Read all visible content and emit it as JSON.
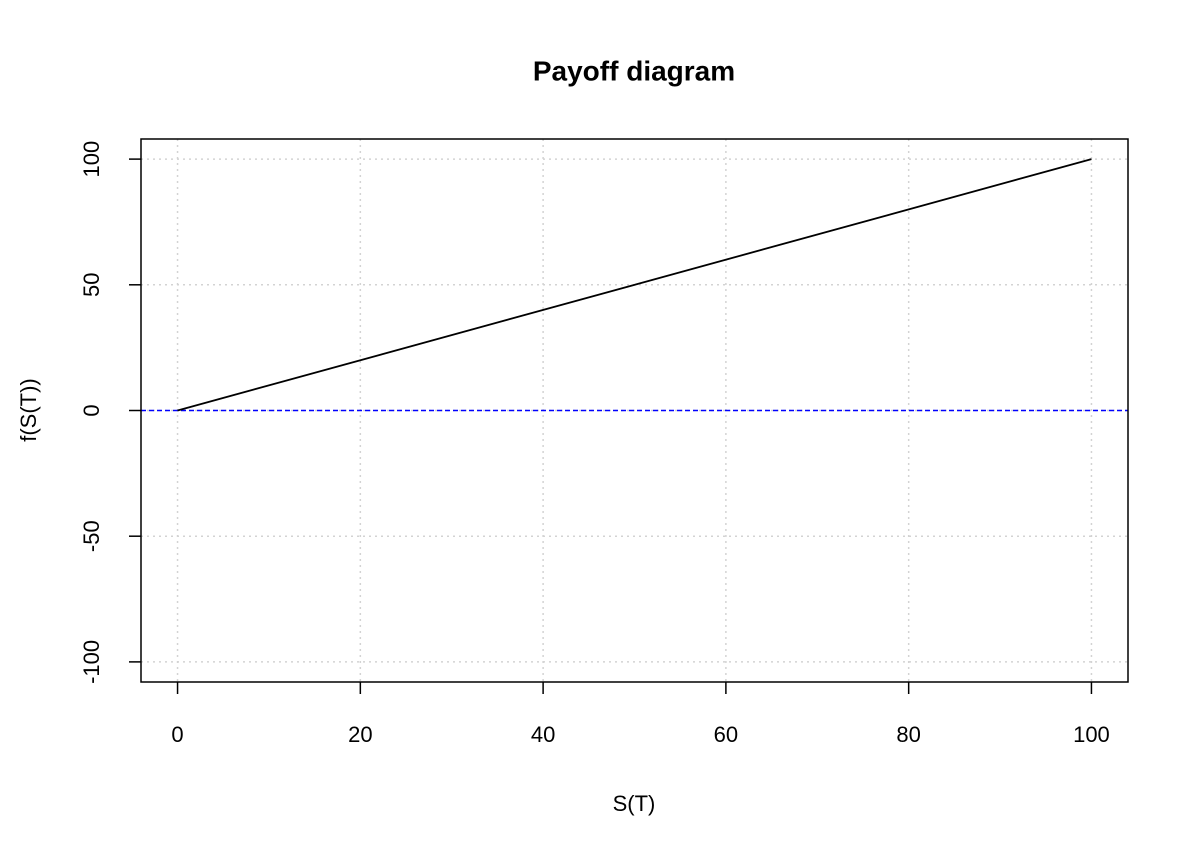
{
  "chart_data": {
    "type": "line",
    "title": "Payoff diagram",
    "x_label": "S(T)",
    "y_label": "f(S(T))",
    "x": [
      0,
      100
    ],
    "series": [
      {
        "values": [
          0,
          100
        ],
        "color": "#000000"
      }
    ],
    "hline": {
      "value": 0,
      "color": "#0000ff",
      "dash": true
    },
    "xlim": [
      -4,
      104
    ],
    "ylim": [
      -108,
      108
    ],
    "xticks": [
      0,
      20,
      40,
      60,
      80,
      100
    ],
    "yticks": [
      -100,
      -50,
      0,
      50,
      100
    ],
    "grid": true
  }
}
